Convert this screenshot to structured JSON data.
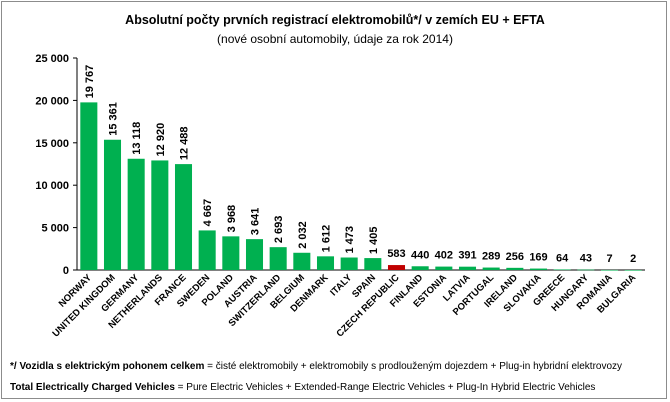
{
  "chart_data": {
    "type": "bar",
    "title": "Absolutní počty prvních registrací elektromobilů*/ v zemích EU + EFTA",
    "subtitle": "(nové osobní automobily, údaje za rok 2014)",
    "categories": [
      "NORWAY",
      "UNITED KINGDOM",
      "GERMANY",
      "NETHERLANDS",
      "FRANCE",
      "SWEDEN",
      "POLAND",
      "AUSTRIA",
      "SWITZERLAND",
      "BELGIUM",
      "DENMARK",
      "ITALY",
      "SPAIN",
      "CZECH REPUBLIC",
      "FINLAND",
      "ESTONIA",
      "LATVIA",
      "PORTUGAL",
      "IRELAND",
      "SLOVAKIA",
      "GREECE",
      "HUNGARY",
      "ROMANIA",
      "BULGARIA"
    ],
    "values": [
      19767,
      15361,
      13118,
      12920,
      12488,
      4667,
      3968,
      3641,
      2693,
      2032,
      1612,
      1473,
      1405,
      583,
      440,
      402,
      391,
      289,
      256,
      169,
      64,
      43,
      7,
      2
    ],
    "value_labels": [
      "19 767",
      "15 361",
      "13 118",
      "12 920",
      "12 488",
      "4 667",
      "3 968",
      "3 641",
      "2 693",
      "2 032",
      "1 612",
      "1 473",
      "1 405",
      "583",
      "440",
      "402",
      "391",
      "289",
      "256",
      "169",
      "64",
      "43",
      "7",
      "2"
    ],
    "yticks": [
      0,
      5000,
      10000,
      15000,
      20000,
      25000
    ],
    "ytick_labels": [
      "0",
      "5 000",
      "10 000",
      "15 000",
      "20 000",
      "25 000"
    ],
    "ylim": [
      0,
      25000
    ],
    "xlabel": "",
    "ylabel": "",
    "grid": false,
    "colors": {
      "default": "#00b050",
      "highlight": "#c00000"
    },
    "highlight_category": "CZECH REPUBLIC"
  },
  "footnote": {
    "line1_bold": "*/ Vozidla s elektrickým pohonem celkem",
    "line1_rest": " = čisté elektromobily + elektromobily s prodlouženým dojezdem + Plug-in hybridní elektrovozy",
    "line2_bold": "Total Electrically Charged Vehicles",
    "line2_rest": " = Pure Electric Vehicles + Extended-Range Electric Vehicles + Plug-In Hybrid Electric Vehicles"
  }
}
